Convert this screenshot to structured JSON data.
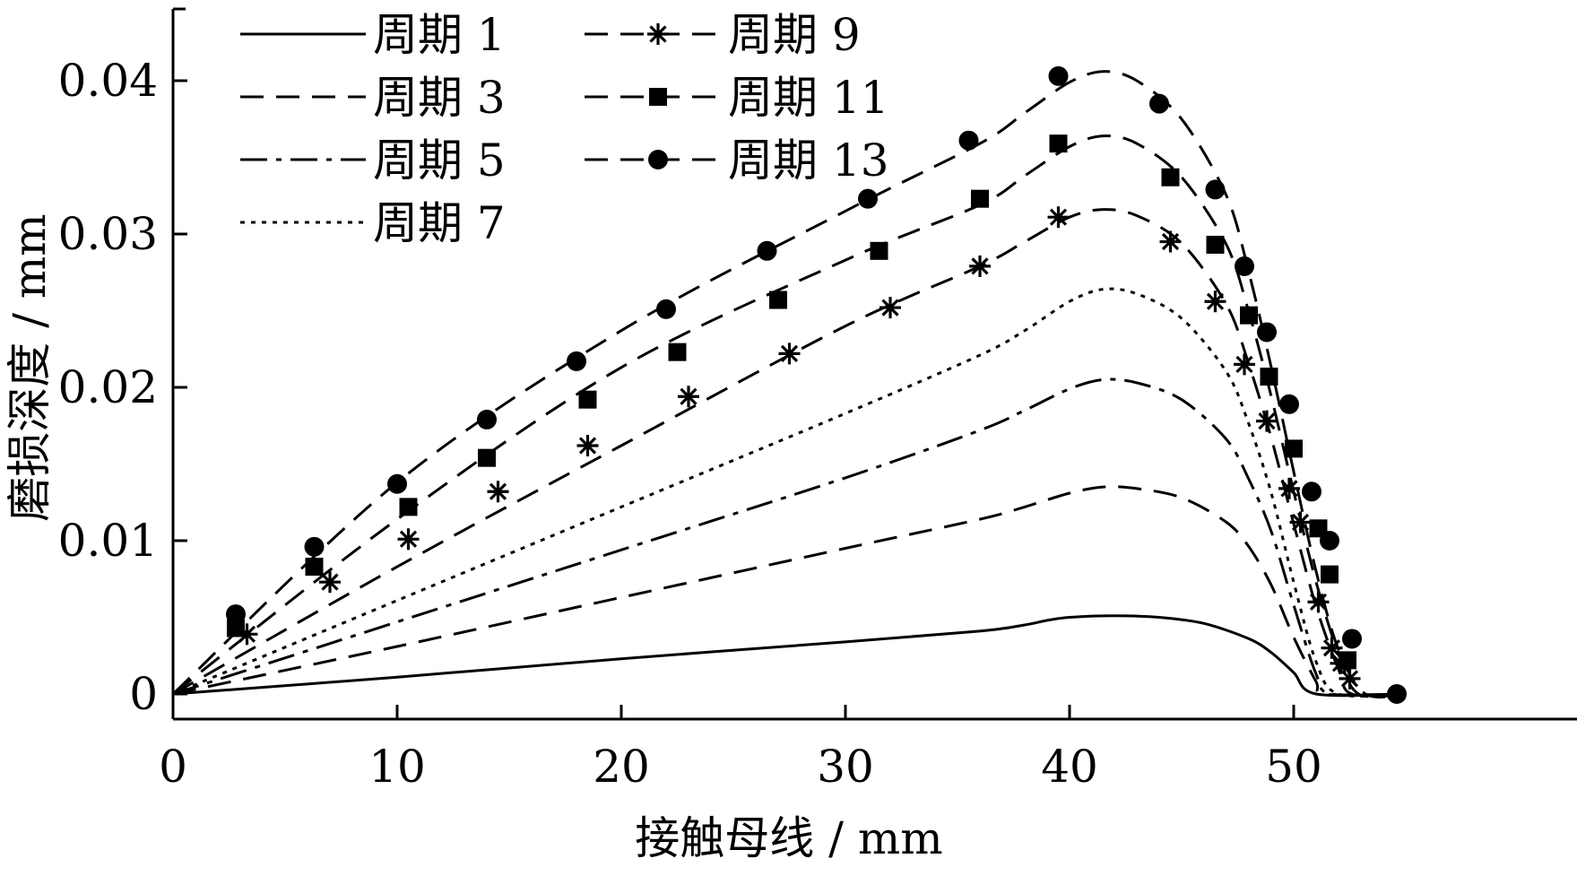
{
  "chart_data": {
    "type": "line",
    "title": "",
    "xlabel": "接触母线 / mm",
    "ylabel": "磨损深度 / mm",
    "xlim": [
      0,
      55
    ],
    "ylim": [
      -0.0018,
      0.0445
    ],
    "xticks": [
      0,
      10,
      20,
      30,
      40,
      50
    ],
    "xtick_labels": [
      "0",
      "10",
      "20",
      "30",
      "40",
      "50"
    ],
    "yticks": [
      0,
      0.01,
      0.02,
      0.03,
      0.04
    ],
    "ytick_labels": [
      "0",
      "0.01",
      "0.02",
      "0.03",
      "0.04"
    ],
    "grid": false,
    "legend_position": "top-left",
    "colors": {
      "line": "#000000",
      "background": "#ffffff"
    },
    "series": [
      {
        "name": "周期 1",
        "style": "solid",
        "marker": "none",
        "x": [
          0,
          10,
          20,
          30,
          36,
          38,
          39,
          40,
          42,
          44,
          46,
          48,
          49,
          50,
          51,
          55
        ],
        "y": [
          0,
          0.0011,
          0.0023,
          0.0034,
          0.0041,
          0.0045,
          0.0048,
          0.005,
          0.0051,
          0.005,
          0.0046,
          0.0036,
          0.0027,
          0.0014,
          0,
          0
        ]
      },
      {
        "name": "周期 3",
        "style": "dashed",
        "marker": "none",
        "x": [
          0,
          10,
          20,
          30,
          36,
          38,
          40,
          41.5,
          43,
          45,
          47,
          48,
          49,
          50,
          51,
          51.4,
          55
        ],
        "y": [
          0,
          0.0031,
          0.0063,
          0.0095,
          0.0114,
          0.0122,
          0.0131,
          0.0135,
          0.0134,
          0.0128,
          0.0112,
          0.0096,
          0.0071,
          0.0037,
          0.0008,
          0,
          0
        ]
      },
      {
        "name": "周期 5",
        "style": "dashdot",
        "marker": "none",
        "x": [
          0,
          10,
          20,
          30,
          36,
          38,
          40,
          41.5,
          43,
          45,
          47,
          48,
          49,
          50,
          51,
          51.7,
          55
        ],
        "y": [
          0,
          0.0047,
          0.0094,
          0.0141,
          0.0172,
          0.0185,
          0.0199,
          0.0205,
          0.0203,
          0.0192,
          0.0166,
          0.014,
          0.0106,
          0.0058,
          0.0013,
          0,
          0
        ]
      },
      {
        "name": "周期 7",
        "style": "dotted",
        "marker": "none",
        "x": [
          0,
          10,
          20,
          30,
          36,
          38,
          40,
          41.5,
          43,
          45,
          47,
          48,
          49,
          50,
          51,
          52,
          55
        ],
        "y": [
          0,
          0.0061,
          0.0122,
          0.0183,
          0.0221,
          0.0237,
          0.0256,
          0.0264,
          0.0261,
          0.0245,
          0.021,
          0.0176,
          0.0131,
          0.0073,
          0.0021,
          0,
          0
        ]
      },
      {
        "name": "周期 9",
        "style": "dashed",
        "marker": "asterisk",
        "x": [
          0,
          10,
          20,
          30,
          36,
          38,
          40,
          41.5,
          43,
          45,
          47,
          48,
          49,
          50,
          51,
          52,
          52.6,
          55
        ],
        "y": [
          0,
          0.0083,
          0.0162,
          0.024,
          0.0279,
          0.0295,
          0.0311,
          0.0316,
          0.0312,
          0.0294,
          0.0254,
          0.0215,
          0.0167,
          0.0111,
          0.0057,
          0.0016,
          0,
          0
        ],
        "marker_x": [
          3.3,
          7,
          10.5,
          14.5,
          18.5,
          23,
          27.5,
          32,
          36,
          39.5,
          44.5,
          46.5,
          47.8,
          48.8,
          49.8,
          50.3,
          51.1,
          51.7,
          52.1,
          52.5
        ],
        "marker_y": [
          0.0039,
          0.0073,
          0.0101,
          0.0132,
          0.0162,
          0.0194,
          0.0222,
          0.0252,
          0.0279,
          0.0311,
          0.0295,
          0.0256,
          0.0215,
          0.0178,
          0.0134,
          0.0112,
          0.006,
          0.003,
          0.002,
          0.001
        ]
      },
      {
        "name": "周期 11",
        "style": "dashed",
        "marker": "square",
        "x": [
          0,
          10,
          20,
          30,
          36,
          38,
          40,
          41.5,
          43,
          45,
          47,
          48,
          49,
          50,
          51,
          52,
          52.9,
          55
        ],
        "y": [
          0,
          0.0114,
          0.0213,
          0.0283,
          0.0319,
          0.0338,
          0.0357,
          0.0364,
          0.0359,
          0.0337,
          0.0293,
          0.0249,
          0.0194,
          0.0132,
          0.0073,
          0.0026,
          0,
          0
        ],
        "marker_x": [
          2.8,
          6.3,
          10.5,
          14,
          18.5,
          22.5,
          27,
          31.5,
          36,
          39.5,
          44.5,
          46.5,
          48,
          48.9,
          50,
          51.1,
          51.6,
          52.4
        ],
        "marker_y": [
          0.0043,
          0.0083,
          0.0122,
          0.0154,
          0.0192,
          0.0223,
          0.0257,
          0.0289,
          0.0323,
          0.0359,
          0.0337,
          0.0293,
          0.0247,
          0.0207,
          0.016,
          0.0108,
          0.0078,
          0.0022
        ]
      },
      {
        "name": "周期 13",
        "style": "dashed",
        "marker": "circle",
        "x": [
          0,
          10,
          20,
          30,
          36,
          38,
          40,
          41.5,
          43,
          45,
          47,
          48,
          49,
          50,
          51,
          52,
          53.2,
          55
        ],
        "y": [
          0,
          0.0138,
          0.0237,
          0.0315,
          0.0359,
          0.0379,
          0.0399,
          0.0406,
          0.04,
          0.0375,
          0.0325,
          0.0275,
          0.0213,
          0.0145,
          0.008,
          0.0029,
          0,
          0
        ],
        "marker_x": [
          2.8,
          6.3,
          10,
          14,
          18,
          22,
          26.5,
          31,
          35.5,
          39.5,
          44,
          46.5,
          47.8,
          48.8,
          49.8,
          50.8,
          51.6,
          52.6,
          54.6
        ],
        "marker_y": [
          0.0052,
          0.0096,
          0.0137,
          0.0179,
          0.0217,
          0.0251,
          0.0289,
          0.0323,
          0.0361,
          0.0403,
          0.0385,
          0.0329,
          0.0279,
          0.0236,
          0.0189,
          0.0132,
          0.01,
          0.0036,
          0
        ]
      }
    ]
  }
}
